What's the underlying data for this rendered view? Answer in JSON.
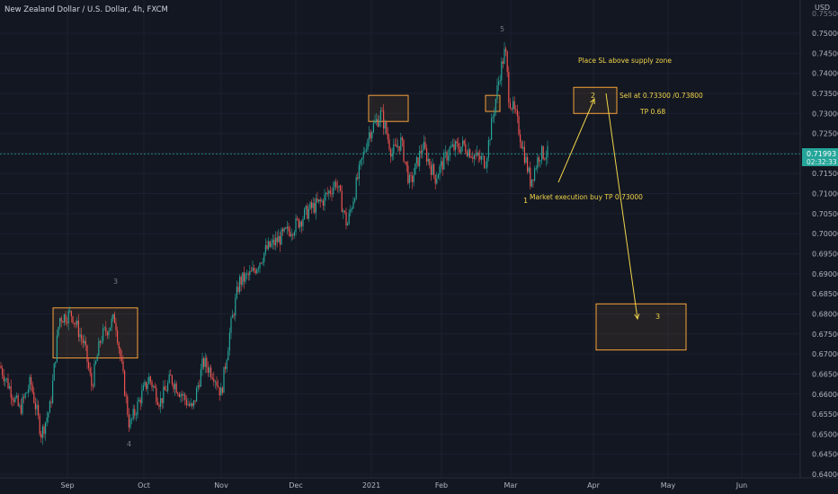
{
  "header": {
    "symbol_title": "New Zealand Dollar / U.S. Dollar, 4h, FXCM"
  },
  "price_axis": {
    "currency_label": "USD",
    "top_clipped_label": "0.75500",
    "ticks": [
      "0.75000",
      "0.74500",
      "0.74000",
      "0.73500",
      "0.73000",
      "0.72500",
      "0.72000",
      "0.71500",
      "0.71000",
      "0.70500",
      "0.70000",
      "0.69500",
      "0.69000",
      "0.68500",
      "0.68000",
      "0.67500",
      "0.67000",
      "0.66500",
      "0.66000",
      "0.65500",
      "0.65000",
      "0.64500",
      "0.64000"
    ],
    "current_price": {
      "value": "0.71993",
      "countdown": "02:32:33"
    }
  },
  "time_axis": {
    "ticks": [
      "Sep",
      "Oct",
      "Nov",
      "Dec",
      "2021",
      "Feb",
      "Mar",
      "Apr",
      "May",
      "Jun"
    ]
  },
  "annotations": {
    "place_sl": "Place SL above supply zone",
    "sell_at": "Sell at  0.73300 /0.73800",
    "tp": "TP 0.68",
    "market_exec": "Market execution buy TP 0.73000",
    "wave_3_left": "3",
    "wave_4": "4",
    "wave_5": "5",
    "wave_1": "1",
    "wave_2": "2",
    "wave_3_target": "3"
  },
  "colors": {
    "background": "#131722",
    "up": "#26a69a",
    "down": "#ef5350",
    "box_border": "#f7a23a",
    "annotation_text": "#f0d44a",
    "current_price": "#26a69a",
    "axis_text": "#b2b5be",
    "wave_label": "#787b86"
  },
  "chart_data": {
    "type": "candlestick",
    "title": "New Zealand Dollar / U.S. Dollar, 4h, FXCM",
    "y_unit": "USD",
    "ylim": [
      0.6385,
      0.7565
    ],
    "x_ticks": [
      "Sep",
      "Oct",
      "Nov",
      "Dec",
      "2021",
      "Feb",
      "Mar",
      "Apr",
      "May",
      "Jun"
    ],
    "current_price": 0.71993,
    "price_path_close": [
      [
        0,
        0.667
      ],
      [
        12,
        0.661
      ],
      [
        22,
        0.656
      ],
      [
        34,
        0.663
      ],
      [
        46,
        0.65
      ],
      [
        56,
        0.657
      ],
      [
        66,
        0.679
      ],
      [
        80,
        0.68
      ],
      [
        94,
        0.672
      ],
      [
        102,
        0.662
      ],
      [
        112,
        0.674
      ],
      [
        128,
        0.679
      ],
      [
        137,
        0.664
      ],
      [
        144,
        0.652
      ],
      [
        156,
        0.659
      ],
      [
        166,
        0.664
      ],
      [
        178,
        0.658
      ],
      [
        190,
        0.664
      ],
      [
        202,
        0.66
      ],
      [
        214,
        0.656
      ],
      [
        226,
        0.668
      ],
      [
        238,
        0.665
      ],
      [
        246,
        0.66
      ],
      [
        256,
        0.676
      ],
      [
        266,
        0.688
      ],
      [
        280,
        0.69
      ],
      [
        296,
        0.696
      ],
      [
        312,
        0.699
      ],
      [
        328,
        0.702
      ],
      [
        344,
        0.706
      ],
      [
        358,
        0.708
      ],
      [
        374,
        0.713
      ],
      [
        386,
        0.702
      ],
      [
        398,
        0.714
      ],
      [
        410,
        0.725
      ],
      [
        424,
        0.73
      ],
      [
        436,
        0.72
      ],
      [
        446,
        0.723
      ],
      [
        456,
        0.712
      ],
      [
        470,
        0.722
      ],
      [
        484,
        0.714
      ],
      [
        500,
        0.721
      ],
      [
        516,
        0.722
      ],
      [
        530,
        0.719
      ],
      [
        540,
        0.718
      ],
      [
        548,
        0.729
      ],
      [
        556,
        0.74
      ],
      [
        562,
        0.746
      ],
      [
        566,
        0.734
      ],
      [
        574,
        0.729
      ],
      [
        582,
        0.721
      ],
      [
        590,
        0.713
      ],
      [
        600,
        0.72
      ],
      [
        610,
        0.7199
      ]
    ],
    "zones": [
      {
        "label": "3",
        "from_price": 0.6815,
        "to_price": 0.669
      },
      {
        "label": "supply",
        "from_price": 0.7345,
        "to_price": 0.728
      },
      {
        "label": "supply",
        "from_price": 0.7345,
        "to_price": 0.7305
      },
      {
        "label": "2",
        "from_price": 0.7365,
        "to_price": 0.73
      },
      {
        "label": "3",
        "from_price": 0.6825,
        "to_price": 0.671
      }
    ],
    "grid": true
  }
}
